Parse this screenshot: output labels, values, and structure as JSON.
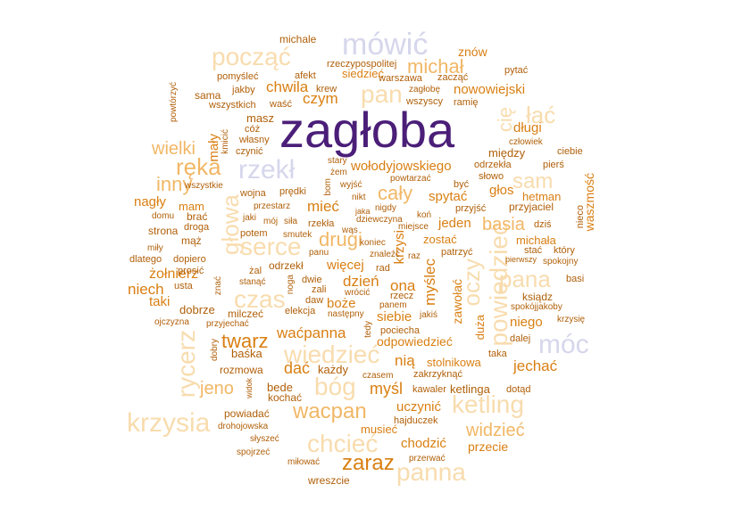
{
  "palette": {
    "dark": "#4b1e78",
    "lav": "#d6d6ec",
    "lt": "#f8dcae",
    "md": "#f1b765",
    "or": "#d97f12",
    "br": "#b05f08"
  },
  "words": [
    {
      "text": "zagłoba",
      "c": "dark"
    },
    {
      "text": "mówić",
      "c": "lav"
    },
    {
      "text": "rzekł",
      "c": "lav"
    },
    {
      "text": "móc",
      "c": "lav"
    },
    {
      "text": "począć",
      "c": "lt"
    },
    {
      "text": "pan",
      "c": "lt"
    },
    {
      "text": "michał",
      "c": "md"
    },
    {
      "text": "ręka",
      "c": "md"
    },
    {
      "text": "głowa",
      "c": "lt"
    },
    {
      "text": "rycerz",
      "c": "lt"
    },
    {
      "text": "krzysia",
      "c": "lt"
    },
    {
      "text": "czas",
      "c": "lt"
    },
    {
      "text": "serce",
      "c": "lt"
    },
    {
      "text": "wiedzieć",
      "c": "lt"
    },
    {
      "text": "bóg",
      "c": "lt"
    },
    {
      "text": "chcieć",
      "c": "lt"
    },
    {
      "text": "panna",
      "c": "lt"
    },
    {
      "text": "ketling",
      "c": "lt"
    },
    {
      "text": "pana",
      "c": "lt"
    },
    {
      "text": "oczy",
      "c": "lt"
    },
    {
      "text": "powiedzieć",
      "c": "lt"
    },
    {
      "text": "sam",
      "c": "lt"
    },
    {
      "text": "cię",
      "c": "lt"
    },
    {
      "text": "łać",
      "c": "lt"
    },
    {
      "text": "wielki",
      "c": "md"
    },
    {
      "text": "inny",
      "c": "md"
    },
    {
      "text": "cały",
      "c": "md"
    },
    {
      "text": "basia",
      "c": "md"
    },
    {
      "text": "drugi",
      "c": "md"
    },
    {
      "text": "wołodyjowskiego",
      "c": "or"
    },
    {
      "text": "wacpan",
      "c": "md"
    },
    {
      "text": "widzieć",
      "c": "md"
    },
    {
      "text": "zaraz",
      "c": "or"
    },
    {
      "text": "twarz",
      "c": "or"
    },
    {
      "text": "jeno",
      "c": "md"
    },
    {
      "text": "chwila",
      "c": "or"
    },
    {
      "text": "czym",
      "c": "or"
    },
    {
      "text": "nowowiejski",
      "c": "or"
    },
    {
      "text": "długi",
      "c": "or"
    },
    {
      "text": "głos",
      "c": "or"
    },
    {
      "text": "spytać",
      "c": "or"
    },
    {
      "text": "jeden",
      "c": "or"
    },
    {
      "text": "mieć",
      "c": "or"
    },
    {
      "text": "dzień",
      "c": "or"
    },
    {
      "text": "ona",
      "c": "or"
    },
    {
      "text": "myśl",
      "c": "or"
    },
    {
      "text": "nią",
      "c": "or"
    },
    {
      "text": "jechać",
      "c": "or"
    },
    {
      "text": "waćpanna",
      "c": "or"
    },
    {
      "text": "dać",
      "c": "or"
    },
    {
      "text": "więcej",
      "c": "or"
    },
    {
      "text": "żołnierz",
      "c": "or"
    },
    {
      "text": "niech",
      "c": "or"
    },
    {
      "text": "taki",
      "c": "or"
    },
    {
      "text": "nagły",
      "c": "or"
    },
    {
      "text": "mam",
      "c": "or"
    },
    {
      "text": "chodzić",
      "c": "or"
    },
    {
      "text": "przecie",
      "c": "or"
    },
    {
      "text": "uczynić",
      "c": "or"
    },
    {
      "text": "musieć",
      "c": "or"
    },
    {
      "text": "stolnikowa",
      "c": "or"
    },
    {
      "text": "odpowiedzieć",
      "c": "or"
    },
    {
      "text": "siebie",
      "c": "or"
    },
    {
      "text": "niego",
      "c": "or"
    },
    {
      "text": "boże",
      "c": "or"
    },
    {
      "text": "hetman",
      "c": "or"
    },
    {
      "text": "michała",
      "c": "or"
    },
    {
      "text": "zostać",
      "c": "or"
    },
    {
      "text": "waszmość",
      "c": "or"
    },
    {
      "text": "znów",
      "c": "or"
    },
    {
      "text": "siedzieć",
      "c": "or"
    },
    {
      "text": "mały",
      "c": "or"
    },
    {
      "text": "krzysi",
      "c": "or"
    },
    {
      "text": "myślec",
      "c": "or"
    },
    {
      "text": "zawołać",
      "c": "or"
    },
    {
      "text": "duża",
      "c": "or"
    },
    {
      "text": "masz",
      "c": "br"
    },
    {
      "text": "bede",
      "c": "br"
    },
    {
      "text": "ketlinga",
      "c": "br"
    },
    {
      "text": "kawaler",
      "c": "br"
    },
    {
      "text": "michale",
      "c": "br"
    },
    {
      "text": "rzeczypospolitej",
      "c": "br"
    },
    {
      "text": "afekt",
      "c": "br"
    },
    {
      "text": "pomyśleć",
      "c": "br"
    },
    {
      "text": "jakby",
      "c": "br"
    },
    {
      "text": "sama",
      "c": "br"
    },
    {
      "text": "wszystkich",
      "c": "br"
    },
    {
      "text": "waść",
      "c": "br"
    },
    {
      "text": "krew",
      "c": "br"
    },
    {
      "text": "warszawa",
      "c": "br"
    },
    {
      "text": "zacząć",
      "c": "br"
    },
    {
      "text": "pytać",
      "c": "br"
    },
    {
      "text": "zagłobę",
      "c": "br"
    },
    {
      "text": "wszyscy",
      "c": "br"
    },
    {
      "text": "ramię",
      "c": "br"
    },
    {
      "text": "powtórzyć",
      "c": "br"
    },
    {
      "text": "cóż",
      "c": "br"
    },
    {
      "text": "własny",
      "c": "br"
    },
    {
      "text": "czynić",
      "c": "br"
    },
    {
      "text": "kmicić",
      "c": "br"
    },
    {
      "text": "człowiek",
      "c": "br"
    },
    {
      "text": "między",
      "c": "br"
    },
    {
      "text": "ciebie",
      "c": "br"
    },
    {
      "text": "stary",
      "c": "br"
    },
    {
      "text": "odrzekła",
      "c": "br"
    },
    {
      "text": "pierś",
      "c": "br"
    },
    {
      "text": "żem",
      "c": "br"
    },
    {
      "text": "słowo",
      "c": "br"
    },
    {
      "text": "powtarzać",
      "c": "br"
    },
    {
      "text": "być",
      "c": "br"
    },
    {
      "text": "wszystkie",
      "c": "br"
    },
    {
      "text": "wojna",
      "c": "br"
    },
    {
      "text": "prędki",
      "c": "br"
    },
    {
      "text": "bom",
      "c": "br"
    },
    {
      "text": "wyjść",
      "c": "br"
    },
    {
      "text": "nikt",
      "c": "br"
    },
    {
      "text": "przyjść",
      "c": "br"
    },
    {
      "text": "przyjaciel",
      "c": "br"
    },
    {
      "text": "domu",
      "c": "br"
    },
    {
      "text": "brać",
      "c": "br"
    },
    {
      "text": "przestarz",
      "c": "br"
    },
    {
      "text": "jaki",
      "c": "br"
    },
    {
      "text": "mój",
      "c": "br"
    },
    {
      "text": "siła",
      "c": "br"
    },
    {
      "text": "jaka",
      "c": "br"
    },
    {
      "text": "nigdy",
      "c": "br"
    },
    {
      "text": "dziewczyna",
      "c": "br"
    },
    {
      "text": "koń",
      "c": "br"
    },
    {
      "text": "miejsce",
      "c": "br"
    },
    {
      "text": "dziś",
      "c": "br"
    },
    {
      "text": "nieco",
      "c": "br"
    },
    {
      "text": "droga",
      "c": "br"
    },
    {
      "text": "strona",
      "c": "br"
    },
    {
      "text": "mąż",
      "c": "br"
    },
    {
      "text": "smutek",
      "c": "br"
    },
    {
      "text": "potem",
      "c": "br"
    },
    {
      "text": "rzekła",
      "c": "br"
    },
    {
      "text": "wąs",
      "c": "br"
    },
    {
      "text": "koniec",
      "c": "br"
    },
    {
      "text": "stać",
      "c": "br"
    },
    {
      "text": "który",
      "c": "br"
    },
    {
      "text": "miły",
      "c": "br"
    },
    {
      "text": "dlatego",
      "c": "br"
    },
    {
      "text": "dopiero",
      "c": "br"
    },
    {
      "text": "panu",
      "c": "br"
    },
    {
      "text": "znaleźć",
      "c": "br"
    },
    {
      "text": "raz",
      "c": "br"
    },
    {
      "text": "patrzyć",
      "c": "br"
    },
    {
      "text": "pierwszy",
      "c": "br"
    },
    {
      "text": "spokojny",
      "c": "br"
    },
    {
      "text": "prosić",
      "c": "br"
    },
    {
      "text": "żal",
      "c": "br"
    },
    {
      "text": "odrzekł",
      "c": "br"
    },
    {
      "text": "rad",
      "c": "br"
    },
    {
      "text": "usta",
      "c": "br"
    },
    {
      "text": "znać",
      "c": "br"
    },
    {
      "text": "stanąć",
      "c": "br"
    },
    {
      "text": "noga",
      "c": "br"
    },
    {
      "text": "dwie",
      "c": "br"
    },
    {
      "text": "zali",
      "c": "br"
    },
    {
      "text": "wrócić",
      "c": "br"
    },
    {
      "text": "rzecz",
      "c": "br"
    },
    {
      "text": "basi",
      "c": "br"
    },
    {
      "text": "ksiądz",
      "c": "br"
    },
    {
      "text": "spokójjakoby",
      "c": "br"
    },
    {
      "text": "krzysię",
      "c": "br"
    },
    {
      "text": "dobrze",
      "c": "br"
    },
    {
      "text": "milczeć",
      "c": "br"
    },
    {
      "text": "elekcja",
      "c": "br"
    },
    {
      "text": "daw",
      "c": "br"
    },
    {
      "text": "panem",
      "c": "br"
    },
    {
      "text": "jakiś",
      "c": "br"
    },
    {
      "text": "następny",
      "c": "br"
    },
    {
      "text": "ojczyzna",
      "c": "br"
    },
    {
      "text": "przyjechać",
      "c": "br"
    },
    {
      "text": "tedy",
      "c": "br"
    },
    {
      "text": "pociecha",
      "c": "br"
    },
    {
      "text": "dalej",
      "c": "br"
    },
    {
      "text": "baśka",
      "c": "br"
    },
    {
      "text": "dobry",
      "c": "br"
    },
    {
      "text": "taka",
      "c": "br"
    },
    {
      "text": "rozmowa",
      "c": "br"
    },
    {
      "text": "każdy",
      "c": "br"
    },
    {
      "text": "zakrzyknąć",
      "c": "br"
    },
    {
      "text": "czasem",
      "c": "br"
    },
    {
      "text": "widok",
      "c": "br"
    },
    {
      "text": "kochać",
      "c": "br"
    },
    {
      "text": "dotąd",
      "c": "br"
    },
    {
      "text": "powiadać",
      "c": "br"
    },
    {
      "text": "hajduczek",
      "c": "br"
    },
    {
      "text": "drohojowska",
      "c": "br"
    },
    {
      "text": "słyszeć",
      "c": "br"
    },
    {
      "text": "spojrzeć",
      "c": "br"
    },
    {
      "text": "miłować",
      "c": "br"
    },
    {
      "text": "przerwać",
      "c": "br"
    },
    {
      "text": "wreszcie",
      "c": "br"
    }
  ]
}
